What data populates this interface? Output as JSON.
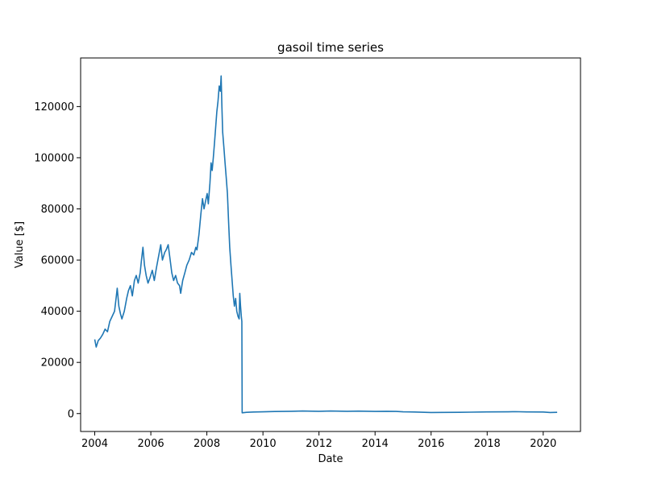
{
  "chart_data": {
    "type": "line",
    "title": "gasoil time series",
    "xlabel": "Date",
    "ylabel": "Value [$]",
    "xlim": [
      "2003-07-01",
      "2021-05-01"
    ],
    "ylim": [
      -7000,
      139000
    ],
    "xticks": [
      "2004",
      "2006",
      "2008",
      "2010",
      "2012",
      "2014",
      "2016",
      "2018",
      "2020"
    ],
    "yticks": [
      0,
      20000,
      40000,
      60000,
      80000,
      100000,
      120000
    ],
    "grid": false,
    "legend": "none",
    "colors": {
      "line": "#1f77b4",
      "axis": "#000000"
    },
    "series": [
      {
        "x": [
          "2004-01-01",
          "2004-01-20",
          "2004-02-15",
          "2004-03-15",
          "2004-04-15",
          "2004-05-15",
          "2004-06-15",
          "2004-07-15",
          "2004-08-15",
          "2004-09-15",
          "2004-10-01",
          "2004-10-20",
          "2004-11-10",
          "2004-12-01",
          "2004-12-20",
          "2005-01-20",
          "2005-02-20",
          "2005-03-15",
          "2005-04-10",
          "2005-05-05",
          "2005-06-01",
          "2005-06-25",
          "2005-07-20",
          "2005-08-15",
          "2005-09-01",
          "2005-09-20",
          "2005-10-10",
          "2005-11-01",
          "2005-11-25",
          "2005-12-20",
          "2006-01-20",
          "2006-02-15",
          "2006-03-15",
          "2006-04-15",
          "2006-05-10",
          "2006-06-01",
          "2006-07-01",
          "2006-07-20",
          "2006-08-15",
          "2006-09-10",
          "2006-10-01",
          "2006-10-25",
          "2006-11-20",
          "2006-12-15",
          "2007-01-10",
          "2007-01-25",
          "2007-02-20",
          "2007-03-20",
          "2007-04-15",
          "2007-05-15",
          "2007-06-15",
          "2007-07-15",
          "2007-08-10",
          "2007-08-25",
          "2007-09-20",
          "2007-10-15",
          "2007-11-05",
          "2007-11-25",
          "2007-12-15",
          "2008-01-05",
          "2008-01-20",
          "2008-02-10",
          "2008-02-25",
          "2008-03-10",
          "2008-03-25",
          "2008-04-10",
          "2008-04-25",
          "2008-05-10",
          "2008-05-25",
          "2008-06-10",
          "2008-06-25",
          "2008-07-05",
          "2008-07-15",
          "2008-07-25",
          "2008-08-10",
          "2008-08-25",
          "2008-09-10",
          "2008-09-25",
          "2008-10-10",
          "2008-10-25",
          "2008-11-10",
          "2008-11-25",
          "2008-12-10",
          "2008-12-25",
          "2009-01-10",
          "2009-01-25",
          "2009-02-10",
          "2009-02-25",
          "2009-03-05",
          "2009-03-15",
          "2009-03-25",
          "2009-04-01",
          "2009-04-05",
          "2009-06-01",
          "2009-09-01",
          "2010-01-01",
          "2010-06-01",
          "2011-01-01",
          "2011-06-01",
          "2012-01-01",
          "2012-06-01",
          "2013-01-01",
          "2013-06-01",
          "2014-01-01",
          "2014-06-01",
          "2014-10-01",
          "2015-01-01",
          "2015-06-01",
          "2016-01-01",
          "2016-06-01",
          "2017-01-01",
          "2017-06-01",
          "2018-01-01",
          "2018-10-01",
          "2019-01-01",
          "2019-06-01",
          "2020-01-01",
          "2020-04-01",
          "2020-07-01"
        ],
        "values": [
          29000,
          26000,
          28500,
          29500,
          31000,
          33000,
          32000,
          36000,
          38000,
          40000,
          44000,
          49000,
          42000,
          39000,
          37000,
          40000,
          45000,
          48000,
          50000,
          46000,
          52000,
          54000,
          51000,
          55000,
          60000,
          65000,
          58000,
          54000,
          51000,
          53000,
          56000,
          52000,
          57000,
          62000,
          66000,
          60000,
          63000,
          64000,
          66000,
          60000,
          55000,
          52000,
          54000,
          51000,
          50000,
          47000,
          52000,
          55000,
          58000,
          60000,
          63000,
          62000,
          65000,
          64000,
          70000,
          78000,
          84000,
          80000,
          83000,
          86000,
          82000,
          90000,
          98000,
          95000,
          100000,
          106000,
          112000,
          118000,
          122000,
          128000,
          126000,
          132000,
          120000,
          110000,
          104000,
          98000,
          92000,
          86000,
          75000,
          65000,
          58000,
          52000,
          46000,
          42000,
          45000,
          40000,
          38000,
          37000,
          47000,
          42000,
          38000,
          36000,
          300,
          500,
          600,
          700,
          800,
          900,
          1000,
          900,
          1000,
          900,
          950,
          850,
          900,
          850,
          700,
          600,
          400,
          450,
          500,
          550,
          650,
          700,
          750,
          650,
          600,
          400,
          500
        ]
      }
    ]
  }
}
